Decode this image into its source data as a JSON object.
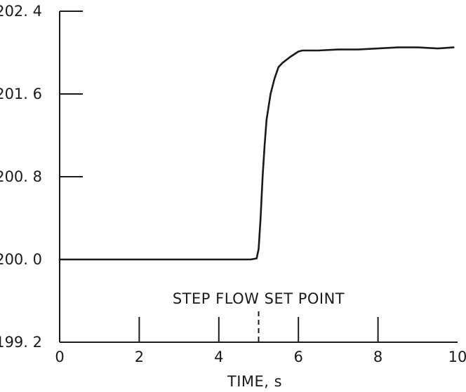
{
  "chart_data": {
    "type": "line",
    "title": "",
    "xlabel": "TIME, s",
    "ylabel": "",
    "xlim": [
      0,
      10
    ],
    "ylim": [
      199.2,
      202.4
    ],
    "x_ticks": [
      0,
      2,
      4,
      6,
      8,
      10
    ],
    "x_tick_labels": [
      "0",
      "2",
      "4",
      "6",
      "8",
      "10"
    ],
    "y_ticks": [
      199.2,
      200.0,
      200.8,
      201.6,
      202.4
    ],
    "y_tick_labels": [
      "199. 2",
      "200. 0",
      "200. 8",
      "201. 6",
      "202. 4"
    ],
    "grid": false,
    "line_color": "#1a1a1a",
    "series": [
      {
        "x": [
          0,
          1,
          2,
          3,
          4,
          4.8,
          4.95,
          5.0,
          5.05,
          5.1,
          5.15,
          5.2,
          5.3,
          5.4,
          5.5,
          5.6,
          5.8,
          6.0,
          6.1,
          6.5,
          7,
          7.5,
          8,
          8.5,
          9,
          9.5,
          9.9
        ],
        "y": [
          200.0,
          200.0,
          200.0,
          200.0,
          200.0,
          200.0,
          200.01,
          200.1,
          200.4,
          200.8,
          201.1,
          201.35,
          201.6,
          201.75,
          201.86,
          201.9,
          201.96,
          202.01,
          202.02,
          202.02,
          202.03,
          202.03,
          202.04,
          202.05,
          202.05,
          202.04,
          202.05
        ]
      }
    ],
    "annotations": [
      {
        "text": "STEP FLOW SET POINT",
        "x": 5.0,
        "style": "dashed-vertical-marker"
      }
    ]
  }
}
